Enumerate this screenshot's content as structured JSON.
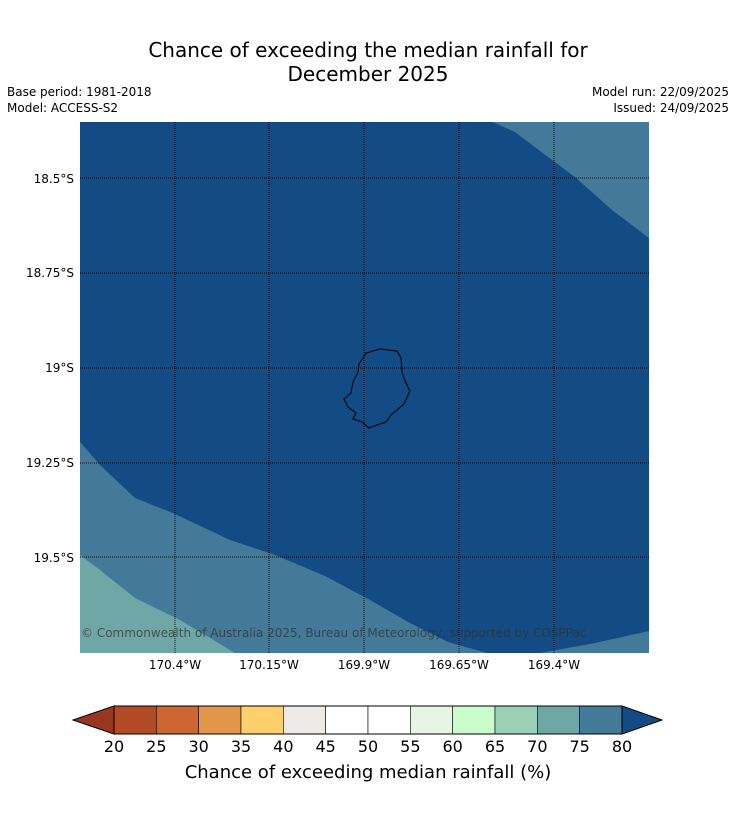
{
  "title": {
    "line1": "Chance of exceeding the median rainfall for",
    "line2": "December 2025"
  },
  "meta": {
    "base_period": "Base period: 1981-2018",
    "model": "Model: ACCESS-S2",
    "model_run": "Model run: 22/09/2025",
    "issued": "Issued: 24/09/2025"
  },
  "map": {
    "latitude_labels": [
      "18.5°S",
      "18.75°S",
      "19°S",
      "19.25°S",
      "19.5°S"
    ],
    "longitude_labels": [
      "170.4°W",
      "170.15°W",
      "169.9°W",
      "169.65°W",
      "169.4°W"
    ],
    "copyright": "© Commonwealth of Australia 2025, Bureau of Meteorology, supported by COSPPac",
    "region_colors": {
      "class_80_plus": "#134b85",
      "class_75_80": "#437a9a",
      "class_70_75": "#6fa6a6"
    }
  },
  "colorbar": {
    "title": "Chance of exceeding median rainfall (%)",
    "ticks": [
      "20",
      "25",
      "30",
      "35",
      "40",
      "45",
      "50",
      "55",
      "60",
      "65",
      "70",
      "75",
      "80"
    ],
    "under_color": "#973721",
    "over_color": "#134b85",
    "colors": [
      "#b24a25",
      "#cd6632",
      "#e1964a",
      "#fdd06c",
      "#ede9e6",
      "#ffffff",
      "#ffffff",
      "#e7f5e7",
      "#c9fbcb",
      "#9ccfb8",
      "#6fa6a6",
      "#437a9a"
    ]
  }
}
